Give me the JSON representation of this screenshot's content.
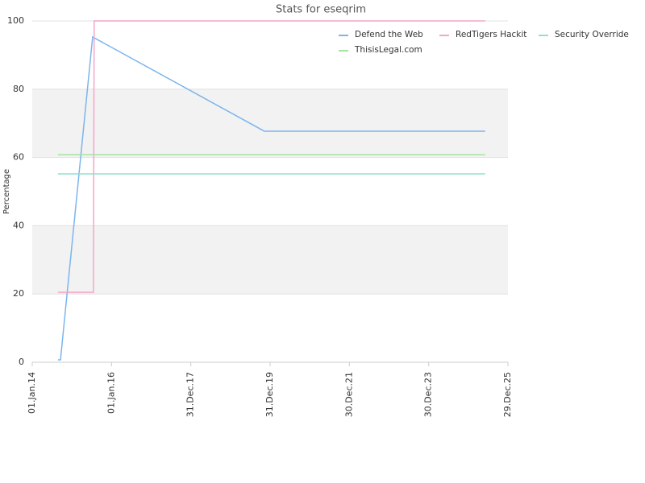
{
  "chart_data": {
    "type": "line",
    "title": "Stats for eseqrim",
    "y_label": "Percentage",
    "xlim": [
      "2014-01-01",
      "2025-12-29"
    ],
    "xticks": [
      {
        "value": "2014-01-01",
        "label": "01.Jan.14"
      },
      {
        "value": "2016-01-01",
        "label": "01.Jan.16"
      },
      {
        "value": "2017-12-31",
        "label": "31.Dec.17"
      },
      {
        "value": "2019-12-31",
        "label": "31.Dec.19"
      },
      {
        "value": "2021-12-30",
        "label": "30.Dec.21"
      },
      {
        "value": "2023-12-30",
        "label": "30.Dec.23"
      },
      {
        "value": "2025-12-29",
        "label": "29.Dec.25"
      }
    ],
    "ylim": [
      0,
      100
    ],
    "yticks": [
      0,
      20,
      40,
      60,
      80,
      100
    ],
    "grid": true,
    "legend": "top-right",
    "series": [
      {
        "name": "Defend the Web",
        "color": "#7cb5ec",
        "x": [
          "2014-08-26",
          "2014-09-18",
          "2015-07-11",
          "2019-11-08",
          "2025-06-02"
        ],
        "values": [
          0.7,
          0.7,
          95.3,
          67.7,
          67.7
        ]
      },
      {
        "name": "RedTigers Hackit",
        "color": "#f4a6c8",
        "x": [
          "2014-08-26",
          "2015-07-18",
          "2015-07-25",
          "2025-06-02"
        ],
        "values": [
          20.5,
          20.5,
          100,
          100
        ]
      },
      {
        "name": "Security Override",
        "color": "#90e0cc",
        "x": [
          "2014-08-26",
          "2025-06-02"
        ],
        "values": [
          55.2,
          55.2
        ]
      },
      {
        "name": "ThisisLegal.com",
        "color": "#a6e3a0",
        "x": [
          "2014-08-26",
          "2025-06-02"
        ],
        "values": [
          60.8,
          60.8
        ]
      }
    ]
  }
}
